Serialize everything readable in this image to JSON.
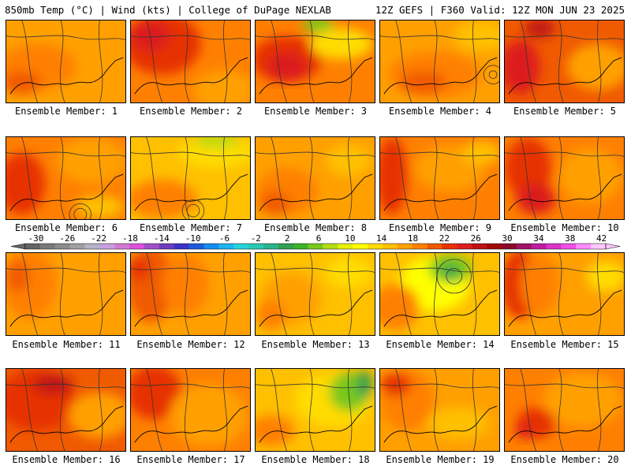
{
  "header": {
    "left_title": "850mb Temp (°C) | Wind (kts) | College of DuPage NEXLAB",
    "right_title": "12Z GEFS | F360 Valid: 12Z MON JUN 23 2025"
  },
  "colorbar": {
    "labels": [
      "-30",
      "-26",
      "-22",
      "-18",
      "-14",
      "-10",
      "-6",
      "-2",
      "2",
      "6",
      "10",
      "14",
      "18",
      "22",
      "26",
      "30",
      "34",
      "38",
      "42"
    ],
    "colors": [
      "#666666",
      "#7a7a7a",
      "#8c8c8c",
      "#a0a0a0",
      "#b4b4c8",
      "#c8a0dc",
      "#d27ad2",
      "#dc50dc",
      "#a050c8",
      "#6e3cbe",
      "#3c32c8",
      "#1e5adc",
      "#148cf0",
      "#1eb4f0",
      "#28d2dc",
      "#28c8b4",
      "#28b48c",
      "#32a050",
      "#3cb428",
      "#78c81e",
      "#b4dc14",
      "#e6f000",
      "#ffff00",
      "#ffdc00",
      "#ffc000",
      "#ffa000",
      "#ff8000",
      "#f05a00",
      "#e63200",
      "#dc1e1e",
      "#be1414",
      "#a00a0a",
      "#8c0a28",
      "#a01464",
      "#be1ea0",
      "#dc32c8",
      "#f050e6",
      "#ff8cff",
      "#ffc8ff"
    ]
  },
  "panels": [
    {
      "caption": "Ensemble Member: 1"
    },
    {
      "caption": "Ensemble Member: 2"
    },
    {
      "caption": "Ensemble Member: 3"
    },
    {
      "caption": "Ensemble Member: 4"
    },
    {
      "caption": "Ensemble Member: 5"
    },
    {
      "caption": "Ensemble Member: 6"
    },
    {
      "caption": "Ensemble Member: 7"
    },
    {
      "caption": "Ensemble Member: 8"
    },
    {
      "caption": "Ensemble Member: 9"
    },
    {
      "caption": "Ensemble Member: 10"
    },
    {
      "caption": "Ensemble Member: 11"
    },
    {
      "caption": "Ensemble Member: 12"
    },
    {
      "caption": "Ensemble Member: 13"
    },
    {
      "caption": "Ensemble Member: 14"
    },
    {
      "caption": "Ensemble Member: 15"
    },
    {
      "caption": "Ensemble Member: 16"
    },
    {
      "caption": "Ensemble Member: 17"
    },
    {
      "caption": "Ensemble Member: 18"
    },
    {
      "caption": "Ensemble Member: 19"
    },
    {
      "caption": "Ensemble Member: 20"
    }
  ]
}
